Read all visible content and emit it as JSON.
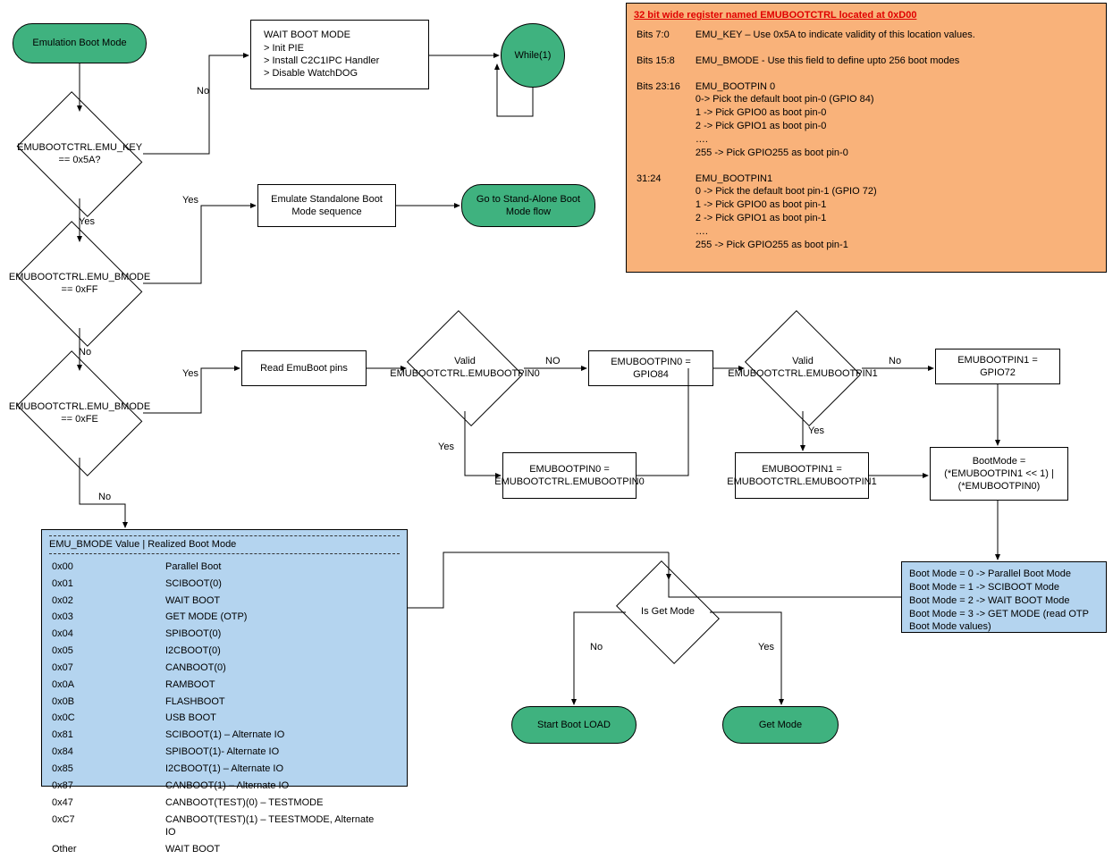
{
  "nodes": {
    "start": "Emulation Boot Mode",
    "d_key": "EMUBOOTCTRL.EMU_KEY == 0x5A?",
    "d_bmode_ff": "EMUBOOTCTRL.EMU_BMODE == 0xFF",
    "d_bmode_fe": "EMUBOOTCTRL.EMU_BMODE == 0xFE",
    "wait_boot": "WAIT BOOT MODE\n> Init PIE\n> Install C2C1IPC Handler\n> Disable WatchDOG",
    "while1": "While(1)",
    "emu_standalone": "Emulate Standalone Boot Mode sequence",
    "goto_standalone": "Go to Stand-Alone Boot Mode flow",
    "read_pins": "Read EmuBoot pins",
    "d_pin0": "Valid EMUBOOTCTRL.EMUBOOTPIN0",
    "pin0_gpio84": "EMUBOOTPIN0 = GPIO84",
    "pin0_ctrl": "EMUBOOTPIN0 = EMUBOOTCTRL.EMUBOOTPIN0",
    "d_pin1": "Valid EMUBOOTCTRL.EMUBOOTPIN1",
    "pin1_gpio72": "EMUBOOTPIN1 = GPIO72",
    "pin1_ctrl": "EMUBOOTPIN1 = EMUBOOTCTRL.EMUBOOTPIN1",
    "bootmode_calc": "BootMode = (*EMUBOOTPIN1 << 1) | (*EMUBOOTPIN0)",
    "d_is_get": "Is Get Mode",
    "start_boot": "Start Boot LOAD",
    "get_mode": "Get Mode"
  },
  "edge_labels": {
    "no": "No",
    "yes": "Yes",
    "no2": "NO"
  },
  "orange_box": {
    "title": "32 bit wide register named EMUBOOTCTRL located at 0xD00",
    "rows": [
      [
        "Bits 7:0",
        "EMU_KEY – Use 0x5A to indicate validity of this location values."
      ],
      [
        "Bits 15:8",
        "EMU_BMODE - Use this field to define upto 256 boot modes"
      ],
      [
        "Bits 23:16",
        "EMU_BOOTPIN 0\n0-> Pick the default boot pin-0 (GPIO 84)\n1 -> Pick GPIO0 as boot pin-0\n2 -> Pick GPIO1 as boot pin-0\n….\n255 -> Pick GPIO255 as boot pin-0"
      ],
      [
        "31:24",
        "EMU_BOOTPIN1\n0 -> Pick the default boot pin-1 (GPIO 72)\n1 -> Pick GPIO0 as boot pin-1\n2 -> Pick GPIO1 as boot pin-1\n….\n255 -> Pick GPIO255 as boot pin-1"
      ]
    ]
  },
  "blue_table": {
    "header": "EMU_BMODE Value  | Realized Boot Mode",
    "rows": [
      [
        "0x00",
        "Parallel Boot"
      ],
      [
        "0x01",
        "SCIBOOT(0)"
      ],
      [
        "0x02",
        "WAIT BOOT"
      ],
      [
        "0x03",
        "GET MODE (OTP)"
      ],
      [
        "0x04",
        "SPIBOOT(0)"
      ],
      [
        "0x05",
        "I2CBOOT(0)"
      ],
      [
        "0x07",
        "CANBOOT(0)"
      ],
      [
        "0x0A",
        "RAMBOOT"
      ],
      [
        "0x0B",
        "FLASHBOOT"
      ],
      [
        "0x0C",
        "USB BOOT"
      ],
      [
        "0x81",
        "SCIBOOT(1) – Alternate IO"
      ],
      [
        "0x84",
        "SPIBOOT(1)- Alternate IO"
      ],
      [
        "0x85",
        "I2CBOOT(1) – Alternate IO"
      ],
      [
        "0x87",
        "CANBOOT(1) – Alternate IO"
      ],
      [
        "0x47",
        "CANBOOT(TEST)(0) – TESTMODE"
      ],
      [
        "0xC7",
        "CANBOOT(TEST)(1) – TEESTMODE, Alternate IO"
      ],
      [
        "Other",
        "WAIT BOOT"
      ]
    ]
  },
  "blue_modes": {
    "lines": [
      "Boot Mode = 0   -> Parallel Boot Mode",
      "Boot Mode = 1   -> SCIBOOT Mode",
      "Boot Mode = 2 -> WAIT BOOT Mode",
      "Boot Mode = 3 -> GET MODE (read OTP Boot Mode values)"
    ]
  },
  "colors": {
    "green": "#3fb27f",
    "orange": "#f9b27a",
    "blue": "#b4d4ef",
    "line": "#000000"
  }
}
